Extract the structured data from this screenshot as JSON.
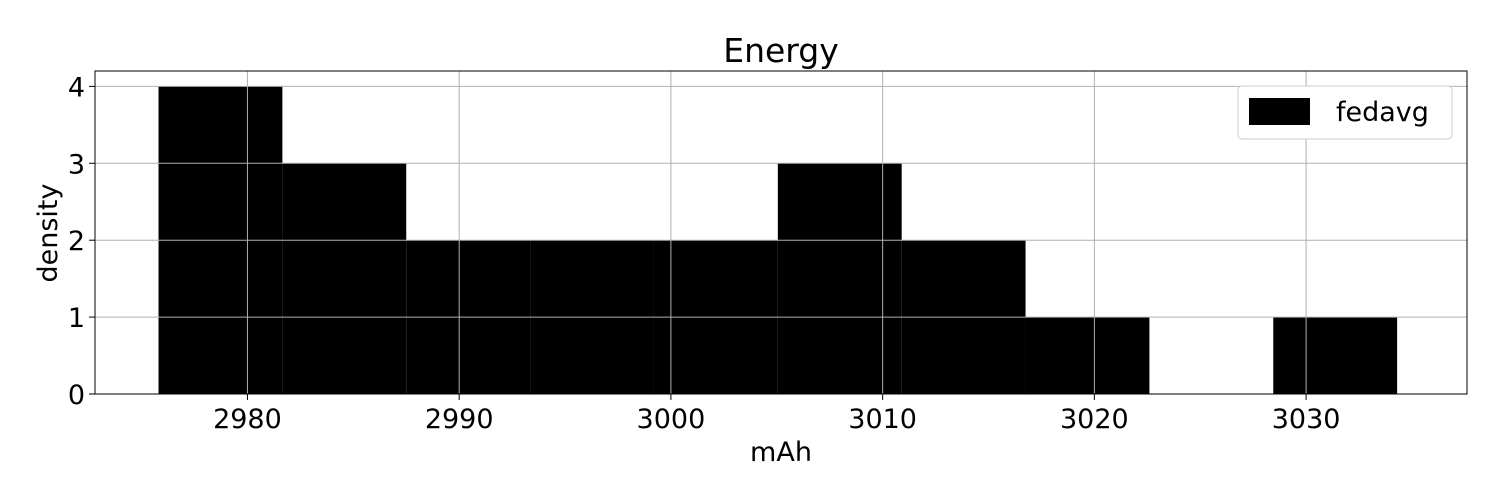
{
  "chart_data": {
    "type": "bar",
    "title": "Energy",
    "xlabel": "mAh",
    "ylabel": "density",
    "series": [
      {
        "name": "fedavg",
        "bin_edges": [
          2975.8,
          2981.65,
          2987.5,
          2993.35,
          2999.2,
          3005.05,
          3010.9,
          3016.75,
          3022.6,
          3028.45,
          3034.3
        ],
        "values": [
          4,
          3,
          2,
          2,
          2,
          3,
          2,
          1,
          0,
          1
        ]
      }
    ],
    "xlim": [
      2972.8,
      3037.6
    ],
    "ylim": [
      0,
      4.2
    ],
    "xticks": [
      2980,
      2990,
      3000,
      3010,
      3020,
      3030
    ],
    "yticks": [
      0,
      1,
      2,
      3,
      4
    ],
    "grid": true,
    "legend_position": "top-right",
    "colors": {
      "bar": "#000000",
      "grid": "#b0b0b0",
      "frame": "#000000"
    }
  }
}
